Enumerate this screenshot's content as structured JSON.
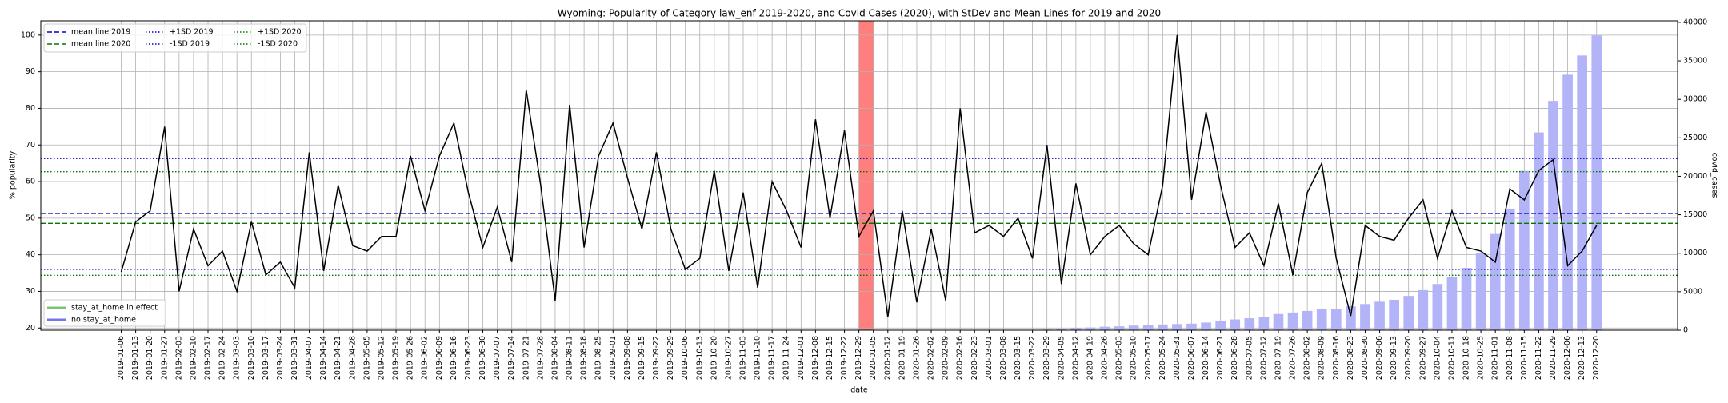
{
  "chart_data": {
    "type": "line",
    "title": "Wyoming: Popularity of Category law_enf 2019-2020, and Covid Cases (2020), with StDev and Mean Lines for 2019 and 2020",
    "x_label": "date",
    "y_label": "% popularity",
    "y2_label": "covid_cases",
    "categories": [
      "2019-01-06",
      "2019-01-13",
      "2019-01-20",
      "2019-01-27",
      "2019-02-03",
      "2019-02-10",
      "2019-02-17",
      "2019-02-24",
      "2019-03-03",
      "2019-03-10",
      "2019-03-17",
      "2019-03-24",
      "2019-03-31",
      "2019-04-07",
      "2019-04-14",
      "2019-04-21",
      "2019-04-28",
      "2019-05-05",
      "2019-05-12",
      "2019-05-19",
      "2019-05-26",
      "2019-06-02",
      "2019-06-09",
      "2019-06-16",
      "2019-06-23",
      "2019-06-30",
      "2019-07-07",
      "2019-07-14",
      "2019-07-21",
      "2019-07-28",
      "2019-08-04",
      "2019-08-11",
      "2019-08-18",
      "2019-08-25",
      "2019-09-01",
      "2019-09-08",
      "2019-09-15",
      "2019-09-22",
      "2019-09-29",
      "2019-10-06",
      "2019-10-13",
      "2019-10-20",
      "2019-10-27",
      "2019-11-03",
      "2019-11-10",
      "2019-11-17",
      "2019-11-24",
      "2019-12-01",
      "2019-12-08",
      "2019-12-15",
      "2019-12-22",
      "2019-12-29",
      "2020-01-05",
      "2020-01-12",
      "2020-01-19",
      "2020-01-26",
      "2020-02-02",
      "2020-02-09",
      "2020-02-16",
      "2020-02-23",
      "2020-03-01",
      "2020-03-08",
      "2020-03-15",
      "2020-03-22",
      "2020-03-29",
      "2020-04-05",
      "2020-04-12",
      "2020-04-19",
      "2020-04-26",
      "2020-05-03",
      "2020-05-10",
      "2020-05-17",
      "2020-05-24",
      "2020-05-31",
      "2020-06-07",
      "2020-06-14",
      "2020-06-21",
      "2020-06-28",
      "2020-07-05",
      "2020-07-12",
      "2020-07-19",
      "2020-07-26",
      "2020-08-02",
      "2020-08-09",
      "2020-08-16",
      "2020-08-23",
      "2020-08-30",
      "2020-09-06",
      "2020-09-13",
      "2020-09-20",
      "2020-09-27",
      "2020-10-04",
      "2020-10-11",
      "2020-10-18",
      "2020-10-25",
      "2020-11-01",
      "2020-11-08",
      "2020-11-15",
      "2020-11-22",
      "2020-11-29",
      "2020-12-06",
      "2020-12-13",
      "2020-12-20"
    ],
    "series": [
      {
        "type": "line",
        "color": "#000000",
        "values": [
          35.3,
          49,
          52,
          75,
          30,
          47,
          37,
          41,
          30,
          49,
          34.5,
          38,
          31,
          68,
          35.6,
          59,
          42.5,
          41,
          45,
          45,
          67,
          52,
          67,
          76,
          57,
          42,
          53,
          38,
          85,
          59,
          27.5,
          81,
          42,
          67,
          76,
          61,
          47,
          68,
          47,
          36,
          39,
          63,
          35.6,
          57,
          31,
          60,
          52,
          42,
          77,
          50,
          74,
          45,
          52,
          23,
          52,
          27,
          47,
          27.5,
          80,
          46,
          48,
          45,
          50,
          39,
          70,
          32,
          59.5,
          40,
          45,
          48,
          43,
          40,
          59,
          100,
          55,
          79,
          59,
          42,
          46,
          37,
          54,
          34.5,
          57,
          65,
          39,
          23.3,
          48,
          45,
          44,
          50,
          55,
          39,
          52,
          42,
          41,
          38,
          58,
          55,
          63,
          66,
          37,
          41,
          48
        ]
      },
      {
        "type": "bar",
        "axis": "y2",
        "color": "#b3b3f7",
        "values": [
          null,
          null,
          null,
          null,
          null,
          null,
          null,
          null,
          null,
          null,
          null,
          null,
          null,
          null,
          null,
          null,
          null,
          null,
          null,
          null,
          null,
          null,
          null,
          null,
          null,
          null,
          null,
          null,
          null,
          null,
          null,
          null,
          null,
          null,
          null,
          null,
          null,
          null,
          null,
          null,
          null,
          null,
          null,
          null,
          null,
          null,
          null,
          null,
          null,
          null,
          null,
          null,
          0,
          0,
          0,
          0,
          0,
          0,
          0,
          0,
          0,
          0,
          0,
          0,
          80,
          200,
          300,
          350,
          450,
          500,
          600,
          700,
          750,
          800,
          850,
          1000,
          1150,
          1400,
          1550,
          1700,
          2100,
          2300,
          2500,
          2700,
          2800,
          3100,
          3400,
          3700,
          3950,
          4450,
          5200,
          6000,
          6900,
          8100,
          10000,
          12500,
          15800,
          20700,
          25700,
          29800,
          33200,
          35700,
          38300
        ]
      }
    ],
    "reference_lines": [
      {
        "name": "mean line 2019",
        "value": 51.3,
        "color": "#0000cc",
        "style": "dashed"
      },
      {
        "name": "mean line 2020",
        "value": 48.6,
        "color": "#007700",
        "style": "dashed"
      },
      {
        "name": "+1SD 2019",
        "value": 66.3,
        "color": "#0000cc",
        "style": "dotted"
      },
      {
        "name": "-1SD 2019",
        "value": 36,
        "color": "#0000cc",
        "style": "dotted"
      },
      {
        "name": "+1SD 2020",
        "value": 62.7,
        "color": "#007700",
        "style": "dotted"
      },
      {
        "name": "-1SD 2020",
        "value": 34.4,
        "color": "#007700",
        "style": "dotted"
      }
    ],
    "stay_legend": [
      {
        "name": "stay_at_home in effect",
        "color": "#7cc47c"
      },
      {
        "name": "no stay_at_home",
        "color": "#7474ee"
      }
    ],
    "highlight": {
      "start": "2019-12-29",
      "end": "2020-01-05",
      "color": "#ff7f7f"
    },
    "ylim": [
      19.4,
      103.9
    ],
    "yticks": [
      20,
      30,
      40,
      50,
      60,
      70,
      80,
      90,
      100
    ],
    "y2lim": [
      0,
      40200
    ],
    "y2ticks": [
      0,
      5000,
      10000,
      15000,
      20000,
      25000,
      30000,
      35000,
      40000
    ],
    "grid": true
  }
}
